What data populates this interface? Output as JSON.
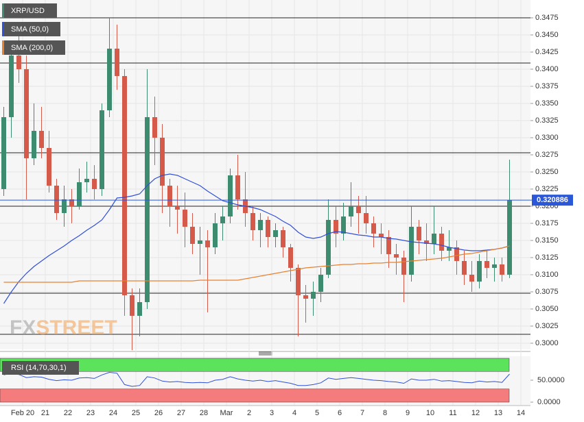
{
  "chart_data": [
    {
      "type": "candlestick",
      "name": "XRP/USD",
      "categories": [
        null,
        null,
        null,
        "Feb 20",
        null,
        null,
        "21",
        null,
        null,
        "22",
        null,
        null,
        "23",
        null,
        null,
        "24",
        null,
        null,
        "25",
        null,
        null,
        "26",
        null,
        null,
        "27",
        null,
        null,
        "28",
        null,
        null,
        "Mar",
        null,
        null,
        "2",
        null,
        null,
        "3",
        null,
        null,
        "4",
        null,
        null,
        "5",
        null,
        null,
        "6",
        null,
        null,
        "7",
        null,
        null,
        "8",
        null,
        null,
        "9",
        null,
        null,
        "10",
        null,
        null,
        "11",
        null,
        null,
        "12",
        null,
        null,
        "13",
        null,
        null,
        "14"
      ],
      "open": [
        0.3225,
        0.333,
        0.342,
        0.34,
        0.327,
        0.331,
        0.3285,
        0.323,
        0.319,
        0.321,
        0.32,
        0.3235,
        0.324,
        0.3225,
        0.334,
        0.343,
        0.339,
        0.307,
        0.304,
        0.306,
        0.333,
        0.33,
        0.323,
        0.32,
        0.3195,
        0.317,
        0.3145,
        0.315,
        0.314,
        0.3175,
        0.3185,
        0.3245,
        0.321,
        0.319,
        0.3165,
        0.318,
        0.3155,
        0.3165,
        0.314,
        0.311,
        0.307,
        0.3065,
        0.3075,
        0.31,
        0.318,
        0.316,
        0.3185,
        0.32,
        0.319,
        0.3175,
        0.316,
        0.3155,
        0.313,
        0.3125,
        0.31,
        0.317,
        0.315,
        0.3145,
        0.316,
        0.3135,
        0.314,
        0.312,
        0.31,
        0.309,
        0.312,
        0.311,
        0.3115,
        0.31,
        null,
        null
      ],
      "high": [
        0.3345,
        0.344,
        0.345,
        0.342,
        0.335,
        0.3345,
        0.331,
        0.324,
        0.323,
        0.3225,
        0.3255,
        0.3265,
        0.326,
        0.335,
        0.3475,
        0.3465,
        0.34,
        0.308,
        0.308,
        0.34,
        0.336,
        0.332,
        0.324,
        0.323,
        0.322,
        0.319,
        0.317,
        0.3165,
        0.319,
        0.32,
        0.3255,
        0.3275,
        0.325,
        0.32,
        0.319,
        0.3185,
        0.3175,
        0.317,
        0.3145,
        0.3115,
        0.3085,
        0.309,
        0.311,
        0.321,
        0.32,
        0.3205,
        0.3235,
        0.3215,
        0.3215,
        0.3185,
        0.3175,
        0.3165,
        0.3145,
        0.3135,
        0.32,
        0.318,
        0.3175,
        0.32,
        0.317,
        0.3165,
        0.315,
        0.3135,
        0.312,
        0.313,
        0.3135,
        0.3125,
        0.3125,
        0.3268,
        null,
        null
      ],
      "low": [
        0.3215,
        0.33,
        0.338,
        0.321,
        0.326,
        0.327,
        0.322,
        0.318,
        0.317,
        0.3175,
        0.3195,
        0.322,
        0.321,
        0.3215,
        0.333,
        0.337,
        0.304,
        0.299,
        0.301,
        0.305,
        0.326,
        0.319,
        0.317,
        0.316,
        0.314,
        0.313,
        0.31,
        0.3045,
        0.313,
        0.315,
        0.3175,
        0.3195,
        0.317,
        0.315,
        0.314,
        0.314,
        0.314,
        0.3125,
        0.309,
        0.301,
        0.303,
        0.304,
        0.306,
        0.3095,
        0.314,
        0.315,
        0.317,
        0.316,
        0.316,
        0.314,
        0.313,
        0.311,
        0.31,
        0.306,
        0.309,
        0.313,
        0.312,
        0.313,
        0.312,
        0.312,
        0.31,
        0.3085,
        0.3075,
        0.308,
        0.3095,
        0.309,
        0.309,
        0.3095,
        null,
        null
      ],
      "close": [
        0.333,
        0.342,
        0.34,
        0.327,
        0.331,
        0.3285,
        0.323,
        0.319,
        0.321,
        0.32,
        0.3235,
        0.324,
        0.3225,
        0.334,
        0.343,
        0.339,
        0.307,
        0.304,
        0.306,
        0.333,
        0.33,
        0.323,
        0.32,
        0.3195,
        0.317,
        0.3145,
        0.315,
        0.314,
        0.3175,
        0.3185,
        0.3245,
        0.321,
        0.319,
        0.3165,
        0.318,
        0.3155,
        0.3165,
        0.314,
        0.311,
        0.307,
        0.3065,
        0.3075,
        0.31,
        0.318,
        0.316,
        0.3185,
        0.32,
        0.319,
        0.3175,
        0.316,
        0.3155,
        0.313,
        0.3125,
        0.31,
        0.317,
        0.315,
        0.3145,
        0.316,
        0.3135,
        0.314,
        0.312,
        0.31,
        0.309,
        0.312,
        0.311,
        0.3115,
        0.31,
        0.3209,
        null,
        null
      ],
      "up_color": "#3d8c70",
      "down_color": "#d65a4a",
      "color": "#3d8c70",
      "series": [
        {
          "name": "SMA (50,0)",
          "color": "#2f50d8",
          "values": [
            0.3058,
            0.3075,
            0.309,
            0.3102,
            0.3112,
            0.312,
            0.3128,
            0.3135,
            0.3142,
            0.315,
            0.3157,
            0.3165,
            0.3172,
            0.318,
            0.3195,
            0.3212,
            0.3213,
            0.3215,
            0.3218,
            0.323,
            0.324,
            0.3245,
            0.3247,
            0.3245,
            0.324,
            0.3235,
            0.323,
            0.3222,
            0.3215,
            0.3208,
            0.3205,
            0.3202,
            0.32,
            0.3198,
            0.3195,
            0.319,
            0.3185,
            0.3178,
            0.3172,
            0.3162,
            0.3155,
            0.3153,
            0.3155,
            0.316,
            0.3163,
            0.3162,
            0.316,
            0.3158,
            0.3157,
            0.3155,
            0.3155,
            0.3153,
            0.3152,
            0.315,
            0.3148,
            0.3147,
            0.3146,
            0.3145,
            0.3143,
            0.314,
            0.3138,
            0.3136,
            0.3135,
            0.3135,
            0.3136,
            0.3137,
            0.3139,
            0.3142,
            null,
            null
          ]
        },
        {
          "name": "SMA (200,0)",
          "color": "#e8812f",
          "values": [
            0.3089,
            0.3089,
            0.3089,
            0.3089,
            0.3089,
            0.3089,
            0.3089,
            0.3089,
            0.3089,
            0.3089,
            0.3091,
            0.3091,
            0.3091,
            0.3091,
            0.3091,
            0.3091,
            0.3091,
            0.3091,
            0.3091,
            0.3091,
            0.3091,
            0.3091,
            0.3091,
            0.3091,
            0.3091,
            0.3091,
            0.3092,
            0.3092,
            0.3092,
            0.3092,
            0.3092,
            0.3092,
            0.3094,
            0.3096,
            0.3098,
            0.31,
            0.3102,
            0.3104,
            0.3106,
            0.3108,
            0.311,
            0.3111,
            0.3112,
            0.3113,
            0.3114,
            0.3115,
            0.3115,
            0.3116,
            0.3116,
            0.3117,
            0.3117,
            0.3118,
            0.3118,
            0.3119,
            0.312,
            0.3121,
            0.3122,
            0.3123,
            0.3124,
            0.3126,
            0.3128,
            0.313,
            0.3131,
            0.3133,
            0.3135,
            0.3137,
            0.3139,
            0.3142,
            null,
            null
          ]
        }
      ],
      "ylim": [
        0.2991,
        0.3501
      ],
      "yticks": [
        0.3475,
        {
          "value": 0.345,
          "label": "0.3450"
        },
        0.3425,
        {
          "value": 0.34,
          "label": "0.3400"
        },
        0.3375,
        {
          "value": 0.335,
          "label": "0.3350"
        },
        0.3325,
        {
          "value": 0.33,
          "label": "0.3300"
        },
        0.3275,
        {
          "value": 0.325,
          "label": "0.3250"
        },
        0.3225,
        {
          "value": 0.32,
          "label": "0.3200"
        },
        0.3175,
        {
          "value": 0.315,
          "label": "0.3150"
        },
        0.3125,
        {
          "value": 0.31,
          "label": "0.3100"
        },
        0.3075,
        {
          "value": 0.305,
          "label": "0.3050"
        },
        0.3025,
        {
          "value": 0.3,
          "label": "0.3000"
        }
      ],
      "grid": true,
      "hlines": [
        0.3475,
        0.3409,
        0.3278,
        0.32,
        0.3073,
        0.3013
      ],
      "hline_color": "#222222",
      "last_price": 0.320886,
      "last_color": "#2b57d9",
      "watermark": [
        "FX",
        "STREET"
      ]
    },
    {
      "type": "line",
      "title": "RSI (14,70,30,1)",
      "color": "#2f50d8",
      "values": [
        62,
        66,
        63,
        56,
        58,
        57,
        52,
        49,
        51,
        50,
        55,
        56,
        54,
        62,
        68,
        66,
        40,
        36,
        38,
        58,
        55,
        48,
        46,
        47,
        45,
        44,
        45,
        44,
        50,
        52,
        58,
        53,
        50,
        48,
        50,
        47,
        49,
        46,
        43,
        38,
        38,
        40,
        44,
        55,
        52,
        54,
        56,
        54,
        52,
        50,
        49,
        47,
        46,
        43,
        53,
        50,
        50,
        52,
        48,
        49,
        47,
        45,
        44,
        48,
        46,
        47,
        45,
        64,
        null,
        null
      ],
      "ylim": [
        0,
        100
      ],
      "yticks": [
        {
          "value": 50,
          "label": "50.0000"
        },
        {
          "value": 0,
          "label": "0.0000"
        }
      ],
      "bands": [
        {
          "from": 70,
          "to": 100,
          "color": "#5be35b"
        },
        {
          "from": 0,
          "to": 30,
          "color": "#f47c7c"
        }
      ]
    }
  ]
}
